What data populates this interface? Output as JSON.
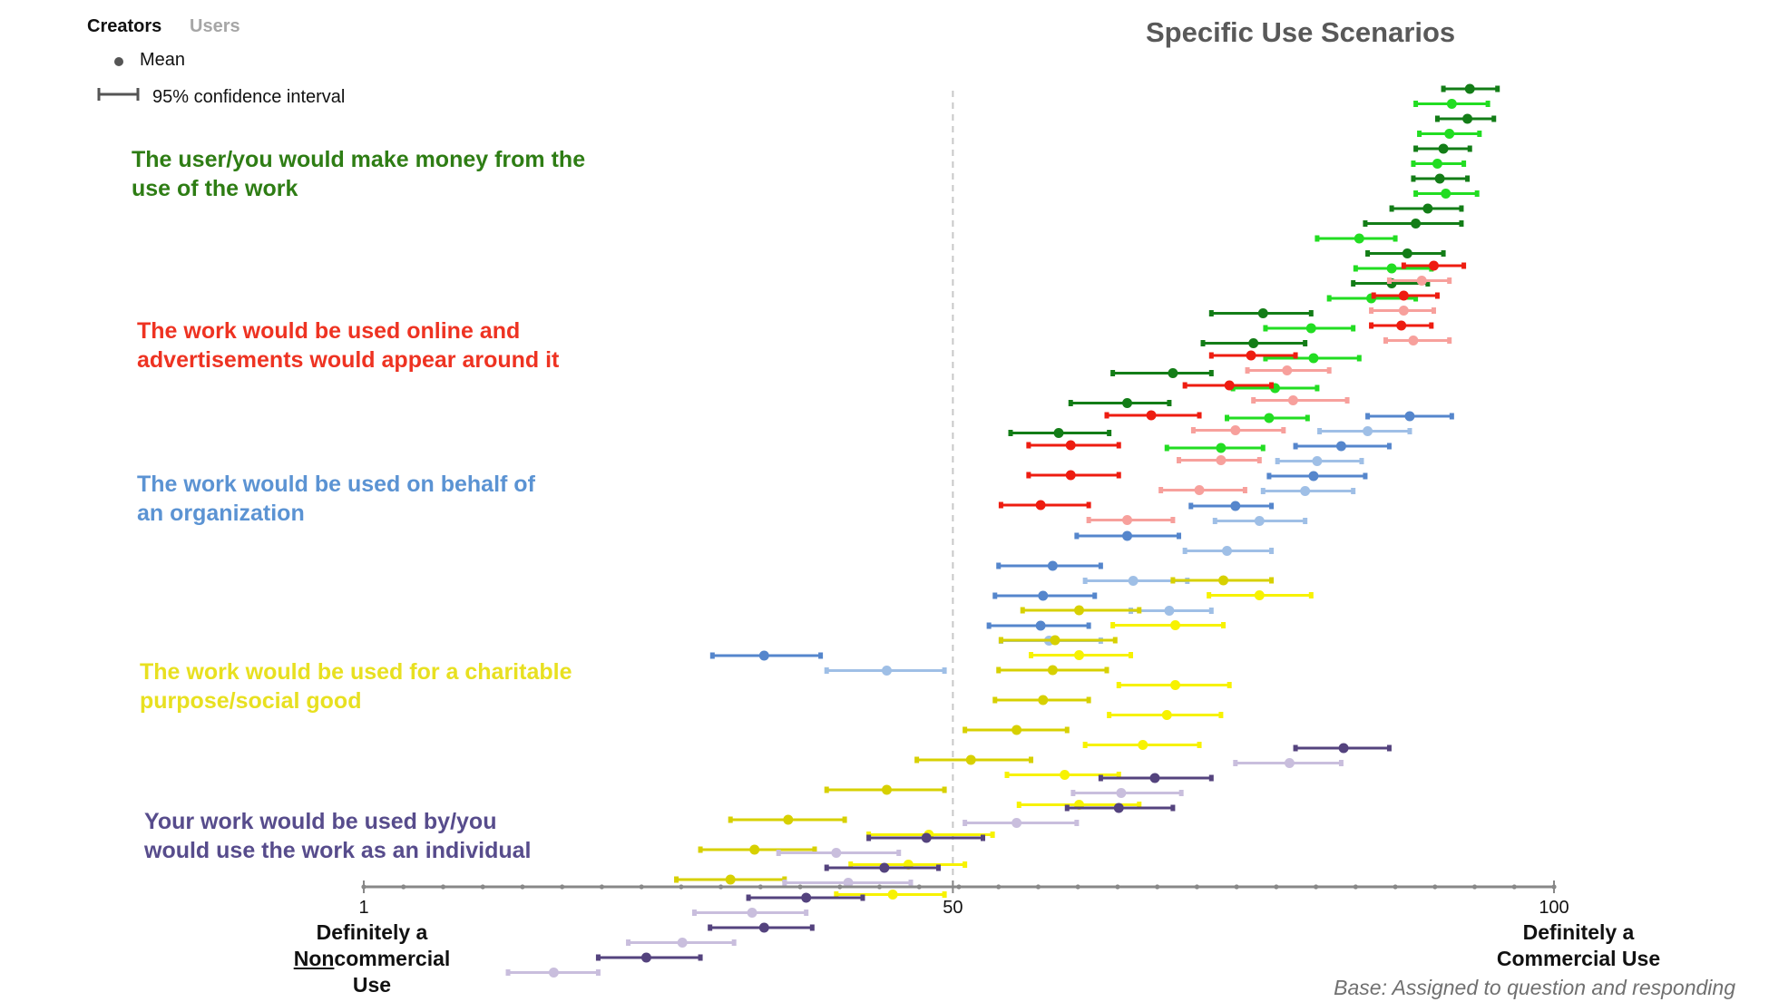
{
  "tabs": [
    "Creators",
    "Users"
  ],
  "active_tab": "Creators",
  "legend": {
    "mean_label": "Mean",
    "ci_label": "95% confidence interval"
  },
  "chart_data": {
    "type": "scatter",
    "title": "Specific Use Scenarios",
    "xlim": [
      1,
      100
    ],
    "x_ticks": [
      1,
      50,
      100
    ],
    "reference_line": 50,
    "axis_end_labels": {
      "left_line1": "Definitely a",
      "left_non": "Non",
      "left_line2_rest": "commercial Use",
      "right_line1": "Definitely a",
      "right_line2": "Commercial Use"
    },
    "note": "Base: Assigned to question and responding",
    "groups": [
      {
        "label_lines": [
          "The user/you would make money from the",
          "use of the work"
        ],
        "label_color": "#2e7d14",
        "colors": {
          "Creators": "#137d17",
          "Users": "#22dd22"
        },
        "points": [
          {
            "series": "Creators",
            "mean": 93,
            "low": 90.8,
            "high": 95.3
          },
          {
            "series": "Users",
            "mean": 91.5,
            "low": 88.5,
            "high": 94.5
          },
          {
            "series": "Creators",
            "mean": 92.8,
            "low": 90.3,
            "high": 95
          },
          {
            "series": "Users",
            "mean": 91.3,
            "low": 88.8,
            "high": 93.8
          },
          {
            "series": "Creators",
            "mean": 90.8,
            "low": 88.5,
            "high": 93
          },
          {
            "series": "Users",
            "mean": 90.3,
            "low": 88.3,
            "high": 92.5
          },
          {
            "series": "Creators",
            "mean": 90.5,
            "low": 88.3,
            "high": 92.8
          },
          {
            "series": "Users",
            "mean": 91,
            "low": 88.5,
            "high": 93.6
          },
          {
            "series": "Creators",
            "mean": 89.5,
            "low": 86.5,
            "high": 92.3
          },
          {
            "series": "Creators",
            "mean": 88.5,
            "low": 84.3,
            "high": 92.3
          },
          {
            "series": "Users",
            "mean": 83.8,
            "low": 80.3,
            "high": 86.8
          },
          {
            "series": "Creators",
            "mean": 87.8,
            "low": 84.5,
            "high": 90.8
          },
          {
            "series": "Users",
            "mean": 86.5,
            "low": 83.5,
            "high": 89.8
          },
          {
            "series": "Creators",
            "mean": 86.5,
            "low": 83.3,
            "high": 89.5
          },
          {
            "series": "Users",
            "mean": 84.8,
            "low": 81.3,
            "high": 88.5
          },
          {
            "series": "Creators",
            "mean": 75.8,
            "low": 71.5,
            "high": 79.8
          },
          {
            "series": "Users",
            "mean": 79.8,
            "low": 76,
            "high": 83.3
          },
          {
            "series": "Creators",
            "mean": 75,
            "low": 70.8,
            "high": 79.3
          },
          {
            "series": "Users",
            "mean": 80,
            "low": 76,
            "high": 83.8
          },
          {
            "series": "Creators",
            "mean": 68.3,
            "low": 63.3,
            "high": 71.5
          },
          {
            "series": "Users",
            "mean": 76.8,
            "low": 73.3,
            "high": 80.3
          },
          {
            "series": "Creators",
            "mean": 64.5,
            "low": 59.8,
            "high": 68
          },
          {
            "series": "Users",
            "mean": 76.3,
            "low": 72.8,
            "high": 79.5
          },
          {
            "series": "Creators",
            "mean": 58.8,
            "low": 54.8,
            "high": 63
          },
          {
            "series": "Users",
            "mean": 72.3,
            "low": 67.8,
            "high": 75.8
          }
        ]
      },
      {
        "label_lines": [
          "The work would be used online and",
          "advertisements would appear around it"
        ],
        "label_color": "#ee3322",
        "colors": {
          "Creators": "#ee1c10",
          "Users": "#f7a09c"
        },
        "points": [
          {
            "series": "Creators",
            "mean": 90,
            "low": 87.5,
            "high": 92.5
          },
          {
            "series": "Users",
            "mean": 89,
            "low": 86.3,
            "high": 91.3
          },
          {
            "series": "Creators",
            "mean": 87.5,
            "low": 85,
            "high": 90.3
          },
          {
            "series": "Users",
            "mean": 87.5,
            "low": 84.8,
            "high": 90
          },
          {
            "series": "Creators",
            "mean": 87.3,
            "low": 84.8,
            "high": 89.8
          },
          {
            "series": "Users",
            "mean": 88.3,
            "low": 86,
            "high": 91.3
          },
          {
            "series": "Creators",
            "mean": 74.8,
            "low": 71.5,
            "high": 78.5
          },
          {
            "series": "Users",
            "mean": 77.8,
            "low": 74.5,
            "high": 81.3
          },
          {
            "series": "Creators",
            "mean": 73,
            "low": 69.3,
            "high": 76.5
          },
          {
            "series": "Users",
            "mean": 78.3,
            "low": 75,
            "high": 82.8
          },
          {
            "series": "Creators",
            "mean": 66.5,
            "low": 62.8,
            "high": 70.5
          },
          {
            "series": "Users",
            "mean": 73.5,
            "low": 70,
            "high": 77.5
          },
          {
            "series": "Creators",
            "mean": 59.8,
            "low": 56.3,
            "high": 63.8
          },
          {
            "series": "Users",
            "mean": 72.3,
            "low": 68.8,
            "high": 75.5
          },
          {
            "series": "Creators",
            "mean": 59.8,
            "low": 56.3,
            "high": 63.8
          },
          {
            "series": "Users",
            "mean": 70.5,
            "low": 67.3,
            "high": 74.3
          },
          {
            "series": "Creators",
            "mean": 57.3,
            "low": 54,
            "high": 61.3
          },
          {
            "series": "Users",
            "mean": 64.5,
            "low": 61.3,
            "high": 68.3
          }
        ]
      },
      {
        "label_lines": [
          "The work would be used on behalf of",
          "an organization"
        ],
        "label_color": "#5b93d3",
        "colors": {
          "Creators": "#5586cc",
          "Users": "#9fbfe6"
        },
        "points": [
          {
            "series": "Creators",
            "mean": 88,
            "low": 84.5,
            "high": 91.5
          },
          {
            "series": "Users",
            "mean": 84.5,
            "low": 80.5,
            "high": 88
          },
          {
            "series": "Creators",
            "mean": 82.3,
            "low": 78.5,
            "high": 86.3
          },
          {
            "series": "Users",
            "mean": 80.3,
            "low": 77,
            "high": 84
          },
          {
            "series": "Creators",
            "mean": 80,
            "low": 76.3,
            "high": 84.3
          },
          {
            "series": "Users",
            "mean": 79.3,
            "low": 75.8,
            "high": 83.3
          },
          {
            "series": "Creators",
            "mean": 73.5,
            "low": 69.8,
            "high": 76.5
          },
          {
            "series": "Users",
            "mean": 75.5,
            "low": 71.8,
            "high": 79.3
          },
          {
            "series": "Creators",
            "mean": 64.5,
            "low": 60.3,
            "high": 68.8
          },
          {
            "series": "Users",
            "mean": 72.8,
            "low": 69.3,
            "high": 76.5
          },
          {
            "series": "Creators",
            "mean": 58.3,
            "low": 53.8,
            "high": 62.3
          },
          {
            "series": "Users",
            "mean": 65,
            "low": 61,
            "high": 69.5
          },
          {
            "series": "Creators",
            "mean": 57.5,
            "low": 53.5,
            "high": 61.8
          },
          {
            "series": "Users",
            "mean": 68,
            "low": 64.8,
            "high": 71.5
          },
          {
            "series": "Creators",
            "mean": 57.3,
            "low": 53,
            "high": 61.3
          },
          {
            "series": "Users",
            "mean": 58,
            "low": 54,
            "high": 62.3
          },
          {
            "series": "Creators",
            "mean": 34.3,
            "low": 30,
            "high": 39
          },
          {
            "series": "Users",
            "mean": 44.5,
            "low": 39.5,
            "high": 49.3
          }
        ]
      },
      {
        "label_lines": [
          "The work would be used for a charitable",
          "purpose/social good"
        ],
        "label_color": "#e8e020",
        "colors": {
          "Creators": "#d7d000",
          "Users": "#f7f200"
        },
        "points": [
          {
            "series": "Creators",
            "mean": 72.5,
            "low": 68.3,
            "high": 76.5
          },
          {
            "series": "Users",
            "mean": 75.5,
            "low": 71.3,
            "high": 79.8
          },
          {
            "series": "Creators",
            "mean": 60.5,
            "low": 55.8,
            "high": 65.5
          },
          {
            "series": "Users",
            "mean": 68.5,
            "low": 63.3,
            "high": 72.5
          },
          {
            "series": "Creators",
            "mean": 58.5,
            "low": 54,
            "high": 63.5
          },
          {
            "series": "Users",
            "mean": 60.5,
            "low": 56.5,
            "high": 64.8
          },
          {
            "series": "Creators",
            "mean": 58.3,
            "low": 53.8,
            "high": 62.8
          },
          {
            "series": "Users",
            "mean": 68.5,
            "low": 63.8,
            "high": 73
          },
          {
            "series": "Creators",
            "mean": 57.5,
            "low": 53.5,
            "high": 61.3
          },
          {
            "series": "Users",
            "mean": 67.8,
            "low": 63,
            "high": 72.3
          },
          {
            "series": "Creators",
            "mean": 55.3,
            "low": 51,
            "high": 59.5
          },
          {
            "series": "Users",
            "mean": 65.8,
            "low": 61,
            "high": 70.5
          },
          {
            "series": "Creators",
            "mean": 51.5,
            "low": 47,
            "high": 56.5
          },
          {
            "series": "Users",
            "mean": 59.3,
            "low": 54.5,
            "high": 63.8
          },
          {
            "series": "Creators",
            "mean": 44.5,
            "low": 39.5,
            "high": 49.3
          },
          {
            "series": "Users",
            "mean": 60.5,
            "low": 55.5,
            "high": 65.5
          },
          {
            "series": "Creators",
            "mean": 36.3,
            "low": 31.5,
            "high": 41
          },
          {
            "series": "Users",
            "mean": 48,
            "low": 43,
            "high": 53.3
          },
          {
            "series": "Creators",
            "mean": 33.5,
            "low": 29,
            "high": 38.5
          },
          {
            "series": "Users",
            "mean": 46.3,
            "low": 41.5,
            "high": 51
          },
          {
            "series": "Creators",
            "mean": 31.5,
            "low": 27,
            "high": 36
          },
          {
            "series": "Users",
            "mean": 45,
            "low": 40.3,
            "high": 49.3
          }
        ]
      },
      {
        "label_lines": [
          "Your work would be used by/you",
          "would use the work as an individual"
        ],
        "label_color": "#574c8c",
        "colors": {
          "Creators": "#54437e",
          "Users": "#c9bedd"
        },
        "points": [
          {
            "series": "Creators",
            "mean": 82.5,
            "low": 78.5,
            "high": 86.3
          },
          {
            "series": "Users",
            "mean": 78,
            "low": 73.5,
            "high": 82.3
          },
          {
            "series": "Creators",
            "mean": 66.8,
            "low": 62.3,
            "high": 71.5
          },
          {
            "series": "Users",
            "mean": 64,
            "low": 60,
            "high": 69
          },
          {
            "series": "Creators",
            "mean": 63.8,
            "low": 59.5,
            "high": 68.3
          },
          {
            "series": "Users",
            "mean": 55.3,
            "low": 51,
            "high": 60.3
          },
          {
            "series": "Creators",
            "mean": 47.8,
            "low": 43,
            "high": 52.5
          },
          {
            "series": "Users",
            "mean": 40.3,
            "low": 35.5,
            "high": 45.5
          },
          {
            "series": "Creators",
            "mean": 44.3,
            "low": 39.5,
            "high": 48.8
          },
          {
            "series": "Users",
            "mean": 41.3,
            "low": 36,
            "high": 46.5
          },
          {
            "series": "Creators",
            "mean": 37.8,
            "low": 33,
            "high": 42.5
          },
          {
            "series": "Users",
            "mean": 33.3,
            "low": 28.5,
            "high": 37.8
          },
          {
            "series": "Creators",
            "mean": 34.3,
            "low": 29.8,
            "high": 38.3
          },
          {
            "series": "Users",
            "mean": 27.5,
            "low": 23,
            "high": 31.8
          },
          {
            "series": "Creators",
            "mean": 24.5,
            "low": 20.5,
            "high": 29
          },
          {
            "series": "Users",
            "mean": 16.8,
            "low": 13,
            "high": 20.5
          }
        ]
      }
    ]
  }
}
